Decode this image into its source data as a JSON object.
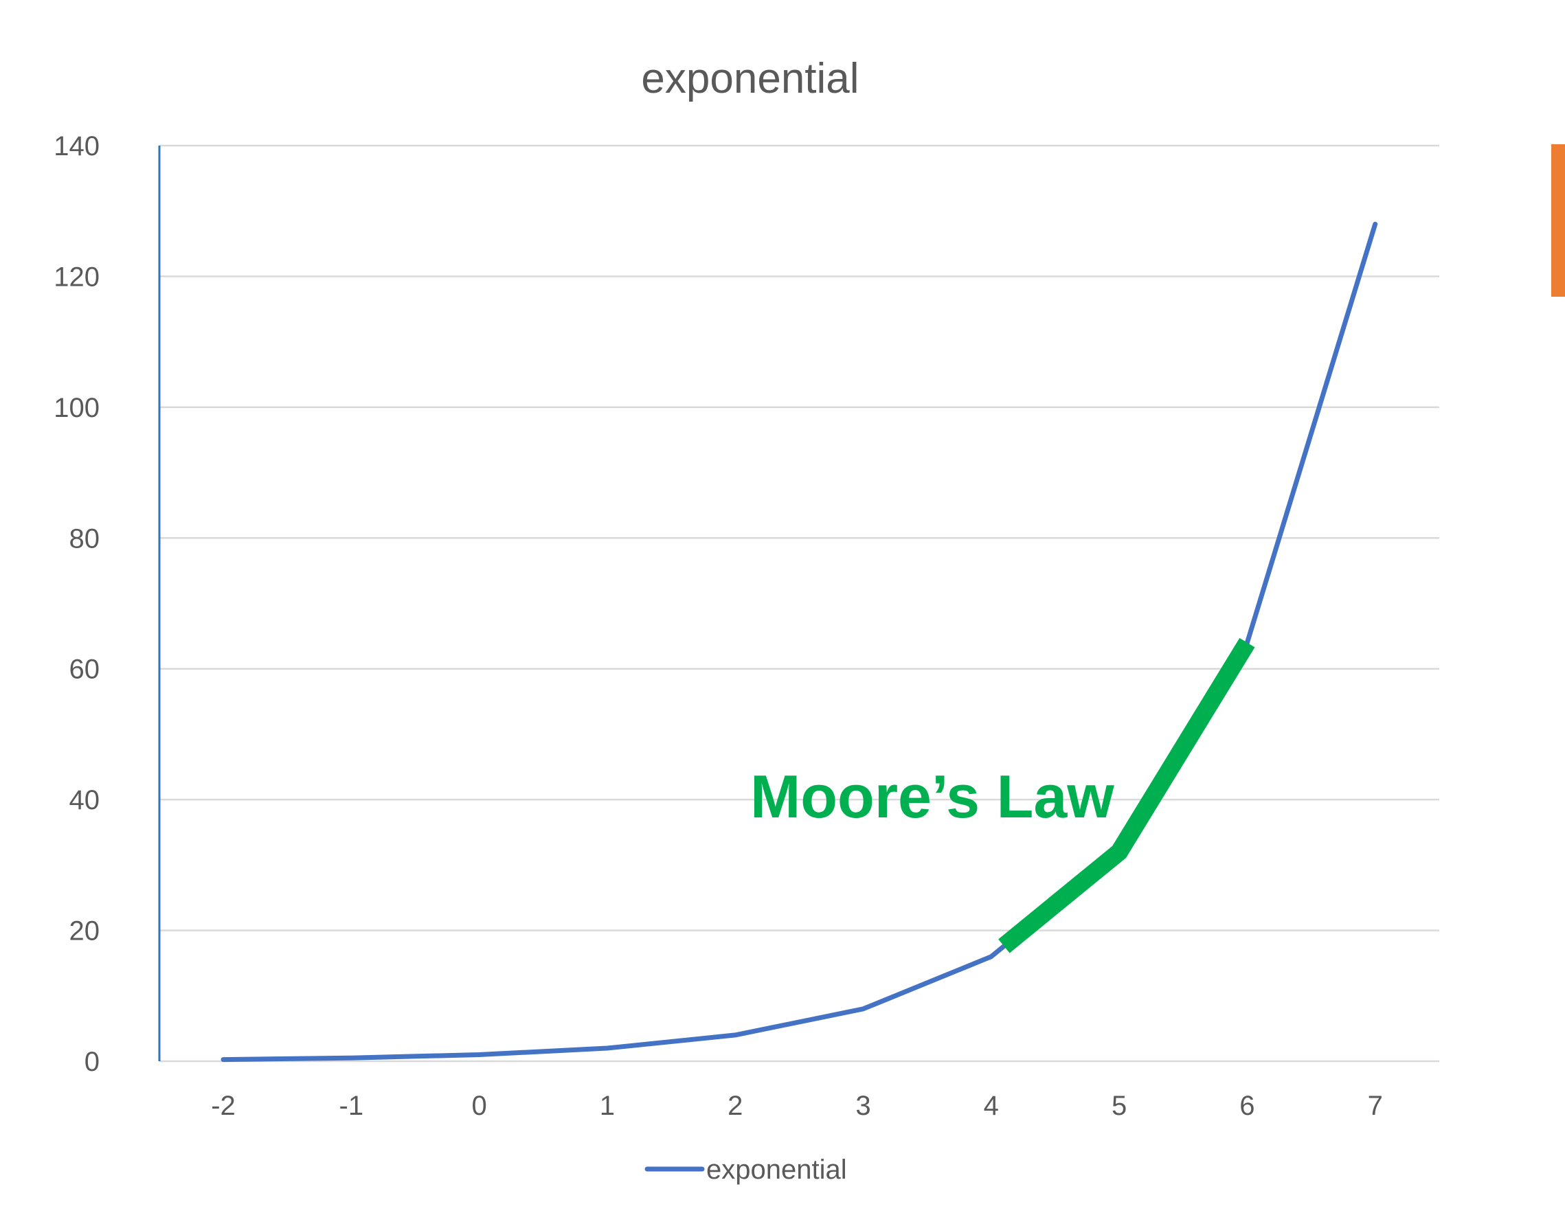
{
  "chart_data": {
    "type": "line",
    "title": "exponential",
    "xlabel": "",
    "ylabel": "",
    "categories": [
      "-2",
      "-1",
      "0",
      "1",
      "2",
      "3",
      "4",
      "5",
      "6",
      "7"
    ],
    "x": [
      -2,
      -1,
      0,
      1,
      2,
      3,
      4,
      5,
      6,
      7
    ],
    "series": [
      {
        "name": "exponential",
        "color": "#4472C4",
        "values": [
          0.25,
          0.5,
          1,
          2,
          4,
          8,
          16,
          32,
          64,
          128
        ]
      }
    ],
    "ylim": [
      0,
      140
    ],
    "yticks": [
      0,
      20,
      40,
      60,
      80,
      100,
      120,
      140
    ],
    "grid": true,
    "legend": "bottom",
    "annotation": {
      "text": "Moore’s Law",
      "color": "#00B050",
      "highlight_x_range": [
        4.1,
        6
      ]
    },
    "colors": {
      "title": "#595959",
      "tick_labels": "#595959",
      "gridline": "#D9D9D9",
      "axis": "#2E75B6",
      "highlight": "#00B050",
      "side_marker": "#ED7D31"
    }
  }
}
